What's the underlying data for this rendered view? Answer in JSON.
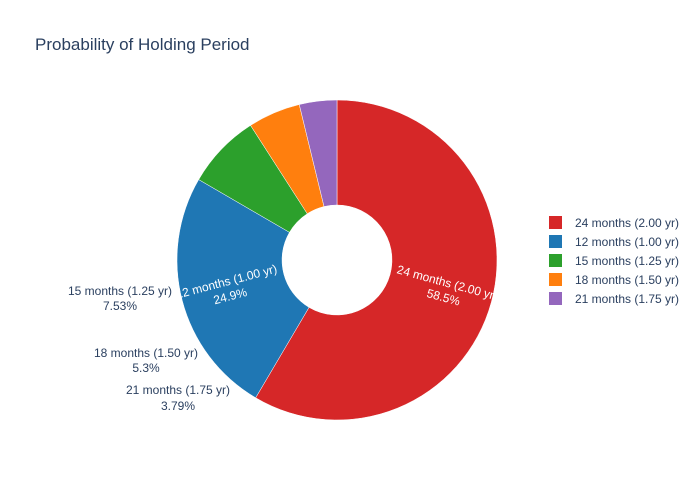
{
  "chart_data": {
    "type": "pie",
    "hole": true,
    "title": "Probability of Holding Period",
    "legend_position": "right",
    "slices": [
      {
        "label": "24 months (2.00 yr)",
        "percent_text": "58.5%",
        "value": 58.5,
        "color": "#d62728",
        "text_position": "inside"
      },
      {
        "label": "12 months (1.00 yr)",
        "percent_text": "24.9%",
        "value": 24.9,
        "color": "#1f77b4",
        "text_position": "inside"
      },
      {
        "label": "15 months (1.25 yr)",
        "percent_text": "7.53%",
        "value": 7.53,
        "color": "#2ca02c",
        "text_position": "outside"
      },
      {
        "label": "18 months (1.50 yr)",
        "percent_text": "5.3%",
        "value": 5.3,
        "color": "#ff7f0e",
        "text_position": "outside"
      },
      {
        "label": "21 months (1.75 yr)",
        "percent_text": "3.79%",
        "value": 3.79,
        "color": "#9467bd",
        "text_position": "outside"
      }
    ]
  }
}
